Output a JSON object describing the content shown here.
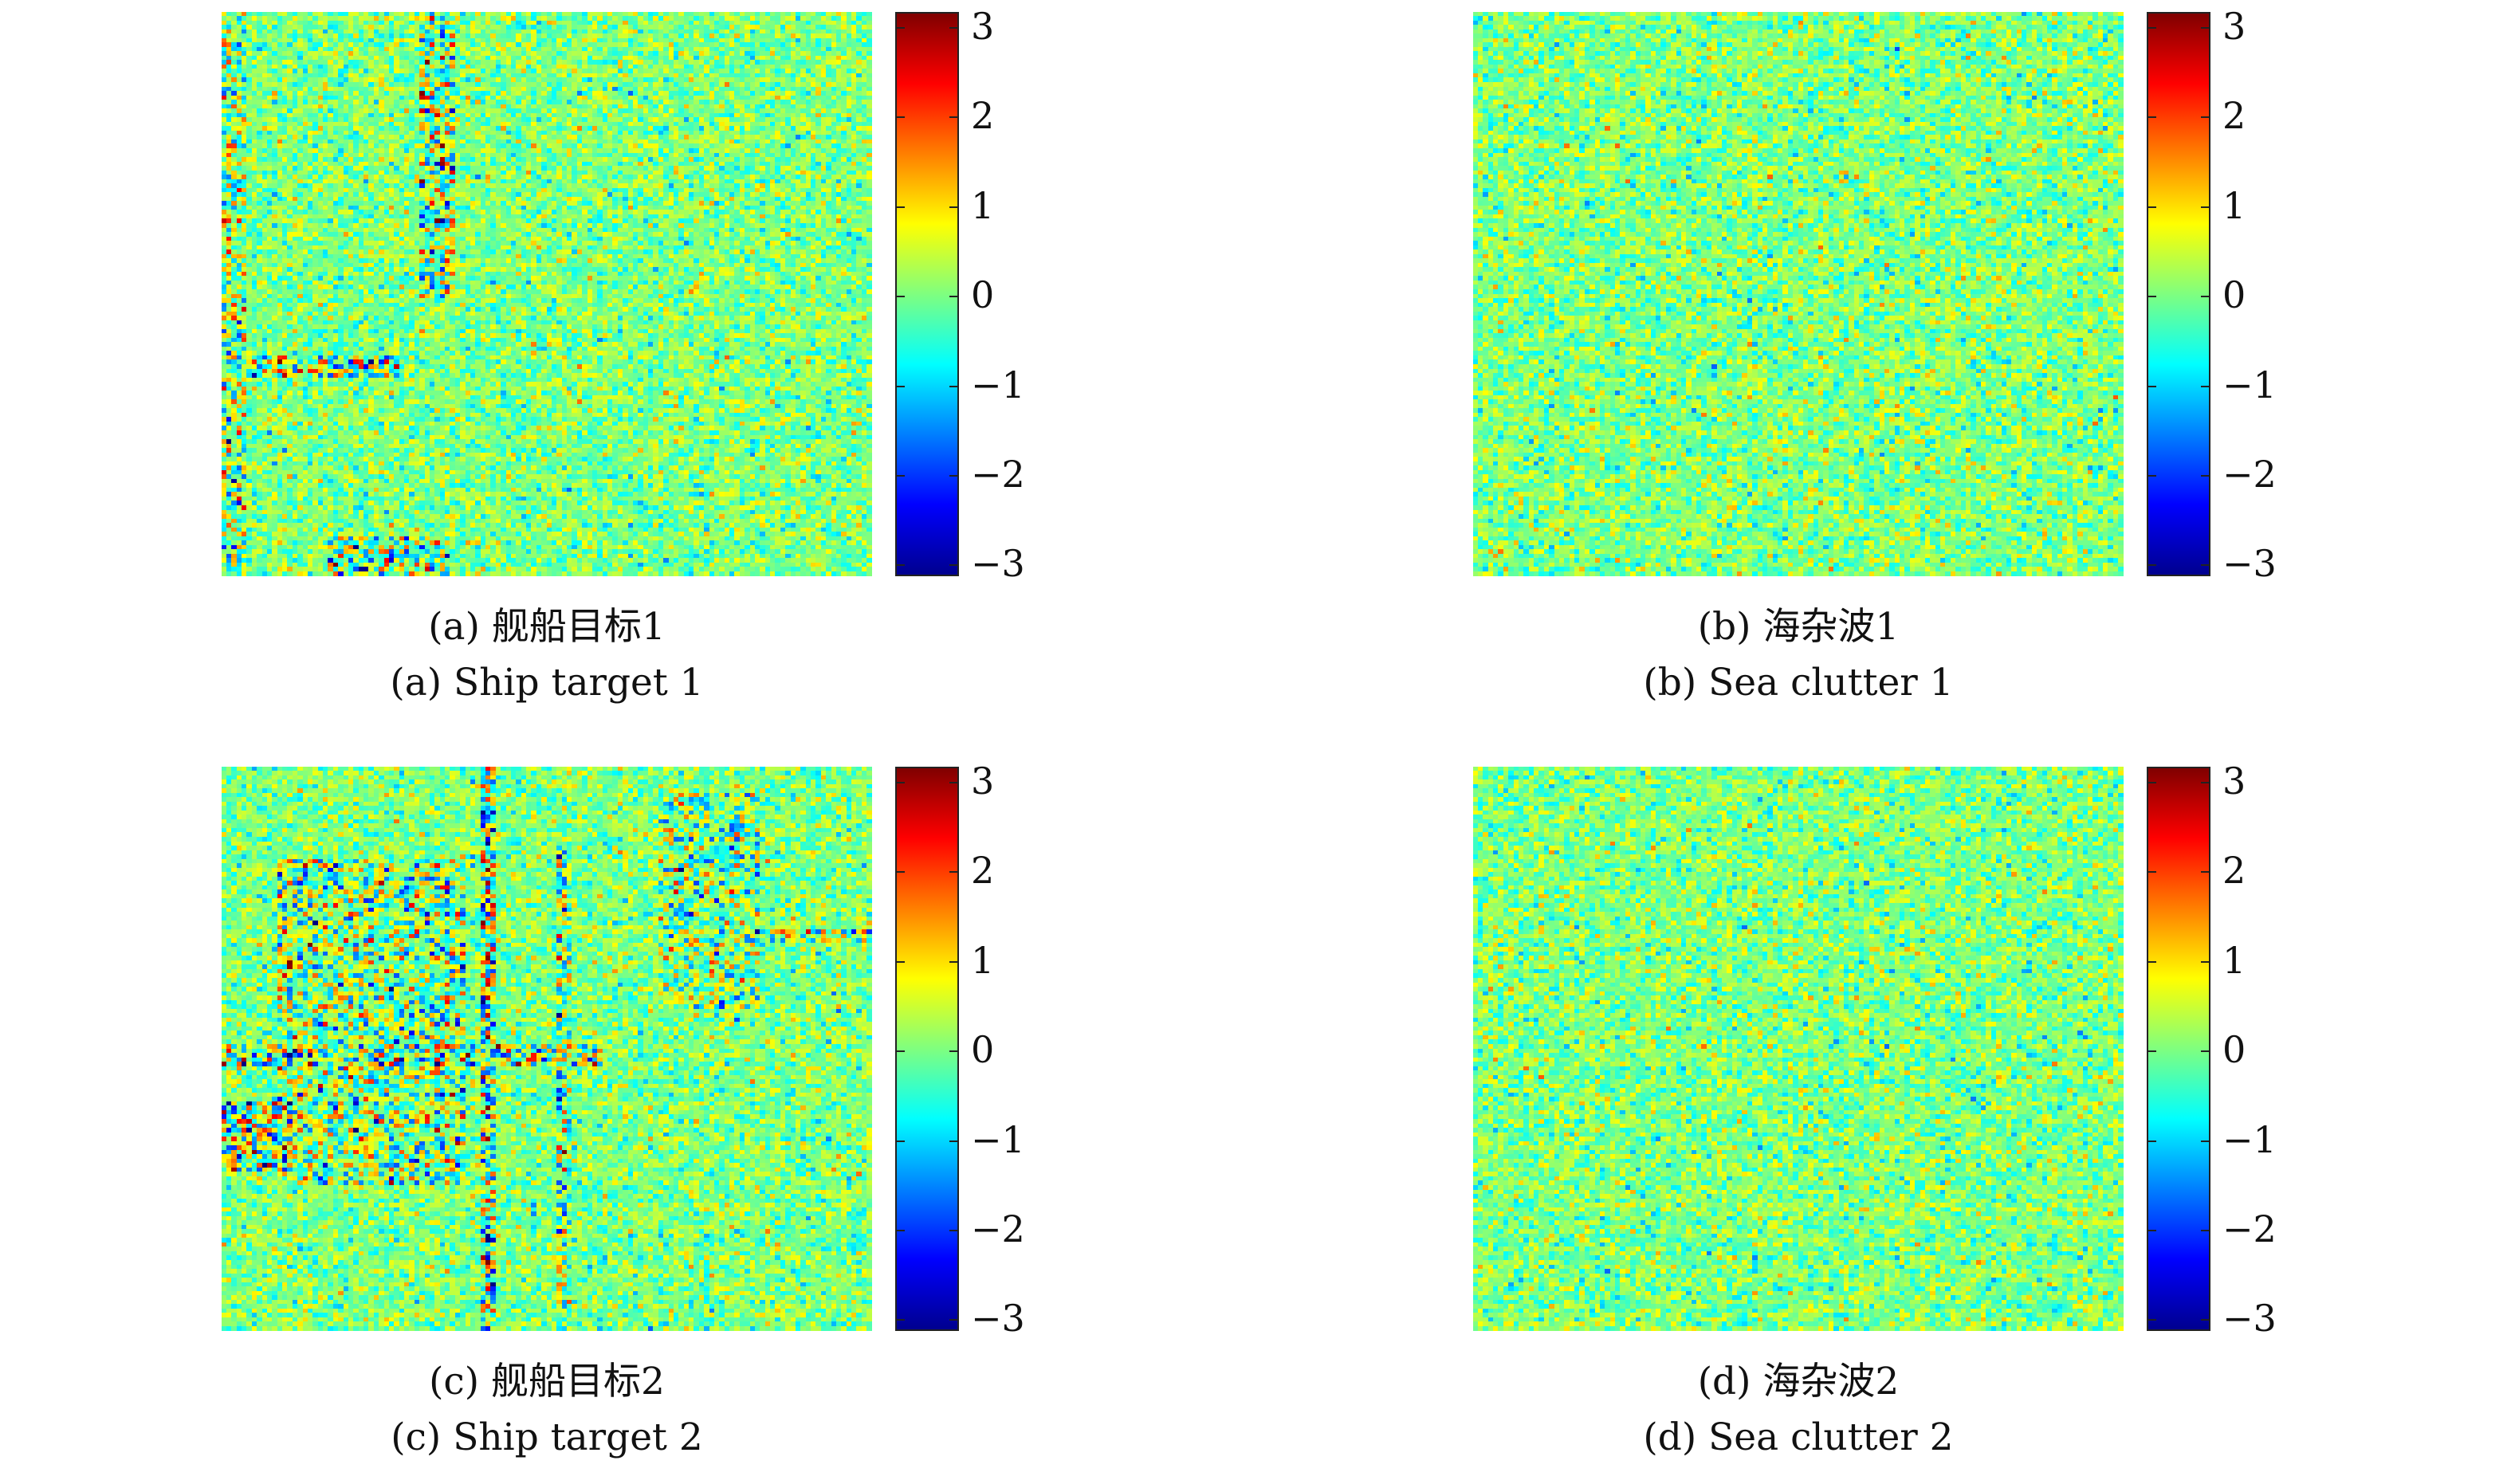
{
  "chart_data": [
    {
      "type": "heatmap",
      "caption_zh": "(a) 舰船目标1",
      "caption_en": "(a) Ship target 1",
      "clim": [
        -3,
        3
      ],
      "colormap": "jet",
      "colorbar_ticks": [
        "3",
        "2",
        "1",
        "0",
        "−1",
        "−2",
        "−3"
      ],
      "grid": false
    },
    {
      "type": "heatmap",
      "caption_zh": "(b) 海杂波1",
      "caption_en": "(b) Sea clutter 1",
      "clim": [
        -3,
        3
      ],
      "colormap": "jet",
      "colorbar_ticks": [
        "3",
        "2",
        "1",
        "0",
        "−1",
        "−2",
        "−3"
      ],
      "grid": false
    },
    {
      "type": "heatmap",
      "caption_zh": "(c) 舰船目标2",
      "caption_en": "(c) Ship target 2",
      "clim": [
        -3,
        3
      ],
      "colormap": "jet",
      "colorbar_ticks": [
        "3",
        "2",
        "1",
        "0",
        "−1",
        "−2",
        "−3"
      ],
      "grid": false
    },
    {
      "type": "heatmap",
      "caption_zh": "(d) 海杂波2",
      "caption_en": "(d) Sea clutter 2",
      "clim": [
        -3,
        3
      ],
      "colormap": "jet",
      "colorbar_ticks": [
        "3",
        "2",
        "1",
        "0",
        "−1",
        "−2",
        "−3"
      ],
      "grid": false
    }
  ]
}
